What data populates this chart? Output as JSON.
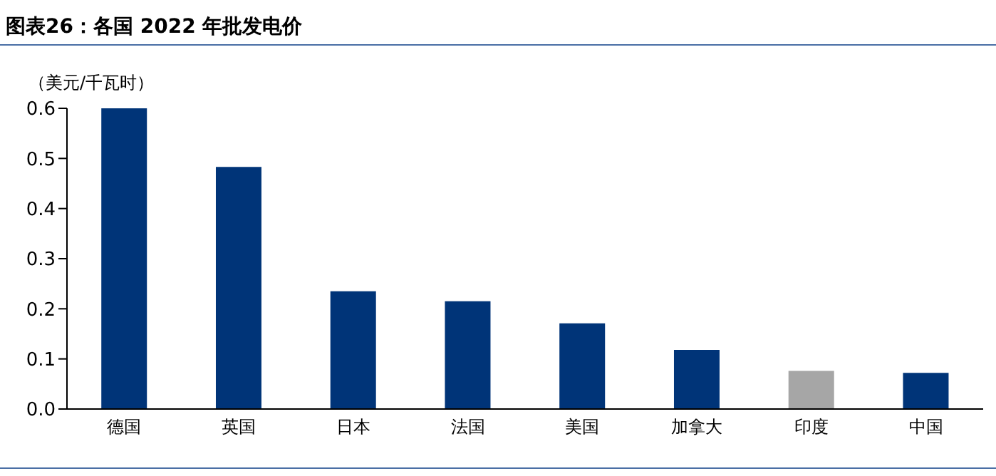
{
  "chart_data": {
    "type": "bar",
    "title": "图表26：各国 2022 年批发电价",
    "ylabel": "（美元/千瓦时）",
    "categories": [
      "德国",
      "英国",
      "日本",
      "法国",
      "美国",
      "加拿大",
      "印度",
      "中国"
    ],
    "values": [
      0.6,
      0.483,
      0.235,
      0.215,
      0.171,
      0.118,
      0.076,
      0.072
    ],
    "colors": [
      "#003478",
      "#003478",
      "#003478",
      "#003478",
      "#003478",
      "#003478",
      "#a6a6a6",
      "#003478"
    ],
    "ylim": [
      0,
      0.6
    ],
    "yticks": [
      {
        "value": 0,
        "label": "0.0"
      },
      {
        "value": 0.1,
        "label": "0.1"
      },
      {
        "value": 0.2,
        "label": "0.2"
      },
      {
        "value": 0.3,
        "label": "0.3"
      },
      {
        "value": 0.4,
        "label": "0.4"
      },
      {
        "value": 0.5,
        "label": "0.5"
      },
      {
        "value": 0.6,
        "label": "0.6"
      }
    ],
    "grid": false,
    "legend": false
  }
}
